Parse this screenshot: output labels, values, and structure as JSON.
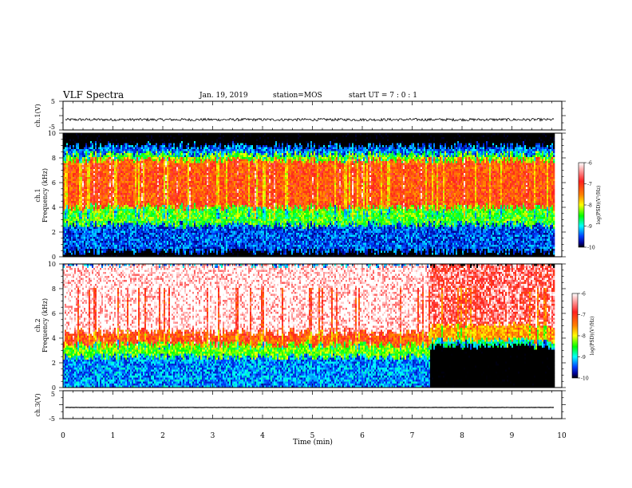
{
  "header": {
    "title": "VLF Spectra",
    "date": "Jan. 19, 2019",
    "station": "station=MOS",
    "start_ut": "start UT =  7 : 0 : 1"
  },
  "colors": {
    "background": "#ffffff",
    "axis": "#000000",
    "colormap": [
      "#ffffff",
      "#ff2020",
      "#ff8000",
      "#ffff00",
      "#00ff00",
      "#00ffff",
      "#0050ff",
      "#000090",
      "#000000"
    ]
  },
  "chart_data": [
    {
      "type": "line",
      "name": "ch1-waveform",
      "ylabel": "ch.1(V)",
      "ylim": [
        -5,
        5
      ],
      "yticks": [
        "5",
        "-5"
      ],
      "xlim": [
        0,
        10
      ],
      "level": -1.4
    },
    {
      "type": "heatmap",
      "name": "ch1-spectrogram",
      "ylabel": "ch.1\nFrequency (kHz)",
      "ylabel_lines": [
        "ch.1",
        "Frequency (kHz)"
      ],
      "ylim": [
        0,
        10
      ],
      "yticks": [
        "0",
        "2",
        "4",
        "6",
        "8",
        "10"
      ],
      "xlim": [
        0,
        9.85
      ],
      "colorbar": {
        "label": "log(PSD)(V²/Hz)",
        "ticks": [
          "-6",
          "-7",
          "-8",
          "-9",
          "-10"
        ],
        "range": [
          -10,
          -6
        ]
      },
      "bands_khz": [
        {
          "from": 9.0,
          "to": 10.0,
          "log_psd": -10.5
        },
        {
          "from": 8.3,
          "to": 9.0,
          "log_psd": -9.3
        },
        {
          "from": 7.8,
          "to": 8.3,
          "log_psd": -8.2
        },
        {
          "from": 4.0,
          "to": 7.8,
          "log_psd": -6.9
        },
        {
          "from": 2.6,
          "to": 4.0,
          "log_psd": -8.3
        },
        {
          "from": 0.4,
          "to": 2.6,
          "log_psd": -9.4
        },
        {
          "from": 0.0,
          "to": 0.4,
          "log_psd": -10.5
        }
      ]
    },
    {
      "type": "heatmap",
      "name": "ch2-spectrogram",
      "ylabel": "ch.2\nFrequency (kHz)",
      "ylabel_lines": [
        "ch.2",
        "Frequency (kHz)"
      ],
      "ylim": [
        0,
        10
      ],
      "yticks": [
        "0",
        "2",
        "4",
        "6",
        "8",
        "10"
      ],
      "xlim": [
        0,
        9.85
      ],
      "colorbar": {
        "label": "log(PSD)(V²/Hz)",
        "ticks": [
          "-6",
          "-7",
          "-8",
          "-9",
          "-10"
        ],
        "range": [
          -10,
          -6
        ]
      },
      "segments": [
        {
          "from_min": 0,
          "to_min": 7.35,
          "bands_khz": [
            {
              "from": 4.5,
              "to": 10.0,
              "log_psd": -6.0
            },
            {
              "from": 3.5,
              "to": 4.5,
              "log_psd": -6.9
            },
            {
              "from": 2.5,
              "to": 3.5,
              "log_psd": -8.2
            },
            {
              "from": 0.0,
              "to": 2.5,
              "log_psd": -9.2
            }
          ]
        },
        {
          "from_min": 7.35,
          "to_min": 9.85,
          "bands_khz": [
            {
              "from": 5.0,
              "to": 10.0,
              "log_psd": -6.4
            },
            {
              "from": 3.8,
              "to": 5.0,
              "log_psd": -7.4
            },
            {
              "from": 3.3,
              "to": 3.8,
              "log_psd": -8.8
            },
            {
              "from": 0.0,
              "to": 3.3,
              "log_psd": -10.6
            }
          ]
        }
      ]
    },
    {
      "type": "line",
      "name": "ch3-waveform",
      "ylabel": "ch.3(V)",
      "ylim": [
        -5,
        5
      ],
      "yticks": [
        "5",
        "-5"
      ],
      "xlim": [
        0,
        10
      ],
      "level": -1.0
    }
  ],
  "xaxis": {
    "label": "Time (min)",
    "ticks": [
      "0",
      "1",
      "2",
      "3",
      "4",
      "5",
      "6",
      "7",
      "8",
      "9",
      "10"
    ],
    "range": [
      0,
      10
    ]
  }
}
